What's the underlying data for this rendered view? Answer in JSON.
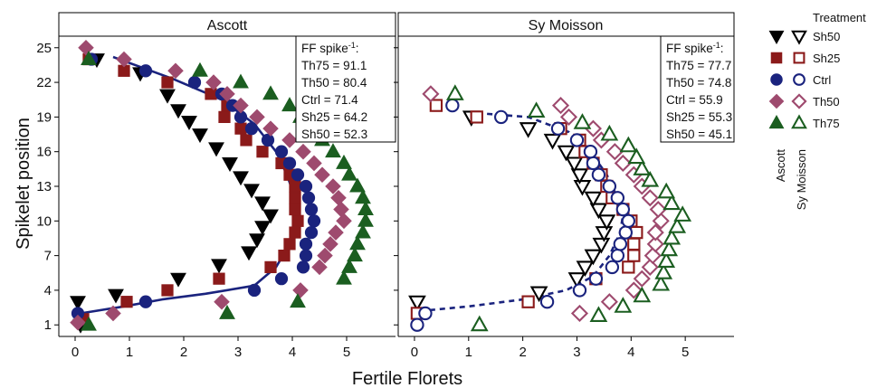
{
  "chart_data": [
    {
      "type": "scatter",
      "panel": "Ascott",
      "xlabel": "Fertile Florets",
      "ylabel": "Spikelet position",
      "xlim": [
        -0.3,
        5.9
      ],
      "ylim": [
        0,
        26
      ],
      "xticks": [
        0,
        1,
        2,
        3,
        4,
        5
      ],
      "yticks": [
        1,
        4,
        7,
        10,
        13,
        16,
        19,
        22,
        25
      ],
      "annotation_title": "FF spike",
      "annotation_title_sup": "-1",
      "annotation_title_suffix": ":",
      "annotation": [
        "Th75 = 91.1",
        "Th50 = 80.4",
        "Ctrl = 71.4",
        "Sh25 = 64.2",
        "Sh50 = 52.3"
      ],
      "fit_line": {
        "series": "Ctrl",
        "style": "solid",
        "points": [
          [
            0.1,
            2
          ],
          [
            0.9,
            2.6
          ],
          [
            1.6,
            3.2
          ],
          [
            2.4,
            3.7
          ],
          [
            3.3,
            4.4
          ],
          [
            3.7,
            6
          ],
          [
            3.95,
            8
          ],
          [
            4.1,
            10
          ],
          [
            4.05,
            12
          ],
          [
            3.9,
            14
          ],
          [
            3.7,
            16
          ],
          [
            3.3,
            18.4
          ],
          [
            2.7,
            20.5
          ],
          [
            1.8,
            22.3
          ],
          [
            0.7,
            24.2
          ]
        ]
      },
      "series": [
        {
          "name": "Sh50",
          "marker": "triangle-down",
          "filled": true,
          "color": "#000000",
          "points": [
            [
              0.1,
              1
            ],
            [
              0.05,
              3
            ],
            [
              0.75,
              3.6
            ],
            [
              1.9,
              5
            ],
            [
              2.65,
              6.2
            ],
            [
              3.2,
              7.3
            ],
            [
              3.35,
              8.4
            ],
            [
              3.45,
              9.5
            ],
            [
              3.6,
              10.5
            ],
            [
              3.45,
              11.6
            ],
            [
              3.25,
              12.7
            ],
            [
              3.05,
              13.8
            ],
            [
              2.85,
              15
            ],
            [
              2.6,
              16.3
            ],
            [
              2.3,
              17.5
            ],
            [
              2.1,
              18.6
            ],
            [
              1.9,
              19.6
            ],
            [
              1.7,
              20.9
            ],
            [
              1.2,
              22.8
            ],
            [
              0.4,
              24
            ]
          ]
        },
        {
          "name": "Sh25",
          "marker": "square",
          "filled": true,
          "color": "#8b1a1a",
          "points": [
            [
              0.15,
              1.5
            ],
            [
              0.95,
              3
            ],
            [
              1.7,
              4
            ],
            [
              2.65,
              5
            ],
            [
              3.6,
              6
            ],
            [
              3.85,
              7
            ],
            [
              3.95,
              8
            ],
            [
              4.05,
              9
            ],
            [
              4.1,
              10
            ],
            [
              4.05,
              11
            ],
            [
              4.05,
              12
            ],
            [
              4.05,
              13
            ],
            [
              3.95,
              14
            ],
            [
              3.8,
              15
            ],
            [
              3.45,
              16
            ],
            [
              3.15,
              17
            ],
            [
              3.05,
              18
            ],
            [
              2.75,
              19
            ],
            [
              2.8,
              20
            ],
            [
              2.5,
              21
            ],
            [
              1.7,
              22
            ],
            [
              0.9,
              23
            ],
            [
              0.25,
              24
            ]
          ]
        },
        {
          "name": "Ctrl",
          "marker": "circle",
          "filled": true,
          "color": "#1a237e",
          "points": [
            [
              0.05,
              2
            ],
            [
              1.3,
              3
            ],
            [
              3.3,
              4
            ],
            [
              3.8,
              5
            ],
            [
              4.2,
              6
            ],
            [
              4.25,
              7
            ],
            [
              4.25,
              8
            ],
            [
              4.35,
              9
            ],
            [
              4.4,
              10
            ],
            [
              4.35,
              11
            ],
            [
              4.3,
              12
            ],
            [
              4.25,
              13
            ],
            [
              4.1,
              14
            ],
            [
              3.95,
              15
            ],
            [
              3.8,
              16
            ],
            [
              3.55,
              17
            ],
            [
              3.25,
              18
            ],
            [
              3.05,
              19
            ],
            [
              2.9,
              20
            ],
            [
              2.7,
              21
            ],
            [
              2.2,
              22
            ],
            [
              1.3,
              23
            ],
            [
              0.3,
              24
            ]
          ]
        },
        {
          "name": "Th50",
          "marker": "diamond",
          "filled": true,
          "color": "#9e4a6e",
          "points": [
            [
              0.05,
              1.2
            ],
            [
              0.7,
              2
            ],
            [
              2.7,
              3
            ],
            [
              4.15,
              4
            ],
            [
              4.5,
              6
            ],
            [
              4.6,
              7
            ],
            [
              4.7,
              8
            ],
            [
              4.8,
              9
            ],
            [
              4.95,
              10
            ],
            [
              4.9,
              11
            ],
            [
              4.85,
              12
            ],
            [
              4.75,
              13
            ],
            [
              4.55,
              14
            ],
            [
              4.4,
              15
            ],
            [
              4.2,
              16
            ],
            [
              3.95,
              17
            ],
            [
              3.6,
              18
            ],
            [
              3.35,
              19
            ],
            [
              3.05,
              20
            ],
            [
              2.8,
              21
            ],
            [
              2.55,
              22
            ],
            [
              1.85,
              23
            ],
            [
              0.9,
              24
            ],
            [
              0.2,
              25
            ]
          ]
        },
        {
          "name": "Th75",
          "marker": "triangle-up",
          "filled": true,
          "color": "#1b5e20",
          "points": [
            [
              0.25,
              1
            ],
            [
              2.8,
              2
            ],
            [
              4.1,
              3
            ],
            [
              4.95,
              5
            ],
            [
              5.05,
              6
            ],
            [
              5.15,
              7
            ],
            [
              5.2,
              8
            ],
            [
              5.3,
              9
            ],
            [
              5.35,
              10
            ],
            [
              5.35,
              11
            ],
            [
              5.3,
              12
            ],
            [
              5.2,
              13
            ],
            [
              5.05,
              14
            ],
            [
              4.95,
              15
            ],
            [
              4.75,
              16
            ],
            [
              4.55,
              17
            ],
            [
              4.35,
              18
            ],
            [
              4.15,
              19
            ],
            [
              3.95,
              20
            ],
            [
              3.6,
              21
            ],
            [
              3.05,
              22
            ],
            [
              2.3,
              23
            ],
            [
              0.25,
              24
            ]
          ]
        }
      ]
    },
    {
      "type": "scatter",
      "panel": "Sy Moisson",
      "xlabel": "Fertile Florets",
      "ylabel": "Spikelet position",
      "xlim": [
        -0.3,
        5.9
      ],
      "ylim": [
        0,
        26
      ],
      "xticks": [
        0,
        1,
        2,
        3,
        4,
        5
      ],
      "yticks": [
        1,
        4,
        7,
        10,
        13,
        16,
        19,
        22,
        25
      ],
      "annotation_title": "FF spike",
      "annotation_title_sup": "-1",
      "annotation_title_suffix": ":",
      "annotation": [
        "Th75 = 77.7",
        "Th50 = 74.8",
        "Ctrl = 55.9",
        "Sh25 = 55.3",
        "Sh50 = 45.1"
      ],
      "fit_line": {
        "series": "Ctrl",
        "style": "dashed",
        "points": [
          [
            0.1,
            2.2
          ],
          [
            1,
            2.6
          ],
          [
            2,
            3.2
          ],
          [
            2.8,
            4
          ],
          [
            3.3,
            5.2
          ],
          [
            3.6,
            7
          ],
          [
            3.8,
            9
          ],
          [
            3.85,
            10.5
          ],
          [
            3.75,
            12
          ],
          [
            3.55,
            14
          ],
          [
            3.25,
            16
          ],
          [
            2.85,
            17.7
          ],
          [
            2.1,
            19
          ],
          [
            1,
            19.4
          ]
        ]
      },
      "series": [
        {
          "name": "Sh50",
          "marker": "triangle-down",
          "filled": false,
          "color": "#000000",
          "points": [
            [
              0.05,
              3
            ],
            [
              2.3,
              3.8
            ],
            [
              3.0,
              5
            ],
            [
              3.15,
              6
            ],
            [
              3.3,
              7
            ],
            [
              3.45,
              8
            ],
            [
              3.5,
              9
            ],
            [
              3.55,
              10
            ],
            [
              3.4,
              11
            ],
            [
              3.3,
              12
            ],
            [
              3.1,
              13
            ],
            [
              3.05,
              14
            ],
            [
              2.95,
              15
            ],
            [
              2.8,
              16
            ],
            [
              2.55,
              17
            ],
            [
              2.1,
              18
            ],
            [
              1.05,
              19
            ]
          ]
        },
        {
          "name": "Sh25",
          "marker": "square",
          "filled": false,
          "color": "#8b1a1a",
          "points": [
            [
              0.05,
              2
            ],
            [
              2.1,
              3
            ],
            [
              3.35,
              5
            ],
            [
              3.95,
              6
            ],
            [
              4.05,
              7
            ],
            [
              4.05,
              8
            ],
            [
              4.1,
              9
            ],
            [
              4.0,
              10
            ],
            [
              3.85,
              11
            ],
            [
              3.65,
              12
            ],
            [
              3.55,
              13
            ],
            [
              3.45,
              14
            ],
            [
              3.3,
              15
            ],
            [
              3.15,
              16
            ],
            [
              3.05,
              17
            ],
            [
              2.7,
              18
            ],
            [
              1.15,
              19
            ],
            [
              0.4,
              20
            ]
          ]
        },
        {
          "name": "Ctrl",
          "marker": "circle",
          "filled": false,
          "color": "#1a237e",
          "points": [
            [
              0.05,
              1
            ],
            [
              0.2,
              2
            ],
            [
              2.45,
              3
            ],
            [
              3.05,
              4
            ],
            [
              3.35,
              5
            ],
            [
              3.65,
              6
            ],
            [
              3.75,
              7
            ],
            [
              3.8,
              8
            ],
            [
              3.9,
              9
            ],
            [
              3.95,
              10
            ],
            [
              3.85,
              11
            ],
            [
              3.75,
              12
            ],
            [
              3.6,
              13
            ],
            [
              3.4,
              14
            ],
            [
              3.3,
              15
            ],
            [
              3.25,
              16
            ],
            [
              3.0,
              17
            ],
            [
              2.65,
              18
            ],
            [
              1.6,
              19
            ],
            [
              0.7,
              20
            ]
          ]
        },
        {
          "name": "Th50",
          "marker": "diamond",
          "filled": false,
          "color": "#9e4a6e",
          "points": [
            [
              3.05,
              2
            ],
            [
              3.6,
              3
            ],
            [
              4.05,
              4
            ],
            [
              4.2,
              5
            ],
            [
              4.35,
              6
            ],
            [
              4.4,
              7
            ],
            [
              4.45,
              8
            ],
            [
              4.45,
              9
            ],
            [
              4.55,
              10
            ],
            [
              4.5,
              11
            ],
            [
              4.35,
              12
            ],
            [
              4.2,
              13
            ],
            [
              4.05,
              14
            ],
            [
              3.85,
              15
            ],
            [
              3.7,
              16
            ],
            [
              3.45,
              17
            ],
            [
              3.3,
              18
            ],
            [
              2.85,
              19
            ],
            [
              2.7,
              20
            ],
            [
              0.3,
              21
            ]
          ]
        },
        {
          "name": "Th75",
          "marker": "triangle-up",
          "filled": false,
          "color": "#1b5e20",
          "points": [
            [
              1.2,
              1
            ],
            [
              3.4,
              1.8
            ],
            [
              3.85,
              2.6
            ],
            [
              4.2,
              3.5
            ],
            [
              4.55,
              4.5
            ],
            [
              4.6,
              5.5
            ],
            [
              4.65,
              6.5
            ],
            [
              4.7,
              7.5
            ],
            [
              4.75,
              8.5
            ],
            [
              4.85,
              9.5
            ],
            [
              4.95,
              10.5
            ],
            [
              4.75,
              11.5
            ],
            [
              4.65,
              12.5
            ],
            [
              4.35,
              13.5
            ],
            [
              4.2,
              14.5
            ],
            [
              4.1,
              15.5
            ],
            [
              3.95,
              16.5
            ],
            [
              3.6,
              17.5
            ],
            [
              3.1,
              18.5
            ],
            [
              2.25,
              19.5
            ],
            [
              0.75,
              21
            ]
          ]
        }
      ]
    }
  ],
  "legend": {
    "title": "Treatment",
    "column_labels": [
      "Ascott",
      "Sy Moisson"
    ],
    "entries": [
      "Sh50",
      "Sh25",
      "Ctrl",
      "Th50",
      "Th75"
    ],
    "colors": [
      "#000000",
      "#8b1a1a",
      "#1a237e",
      "#9e4a6e",
      "#1b5e20"
    ],
    "markers": [
      "triangle-down",
      "square",
      "circle",
      "diamond",
      "triangle-up"
    ],
    "placement": "right"
  }
}
